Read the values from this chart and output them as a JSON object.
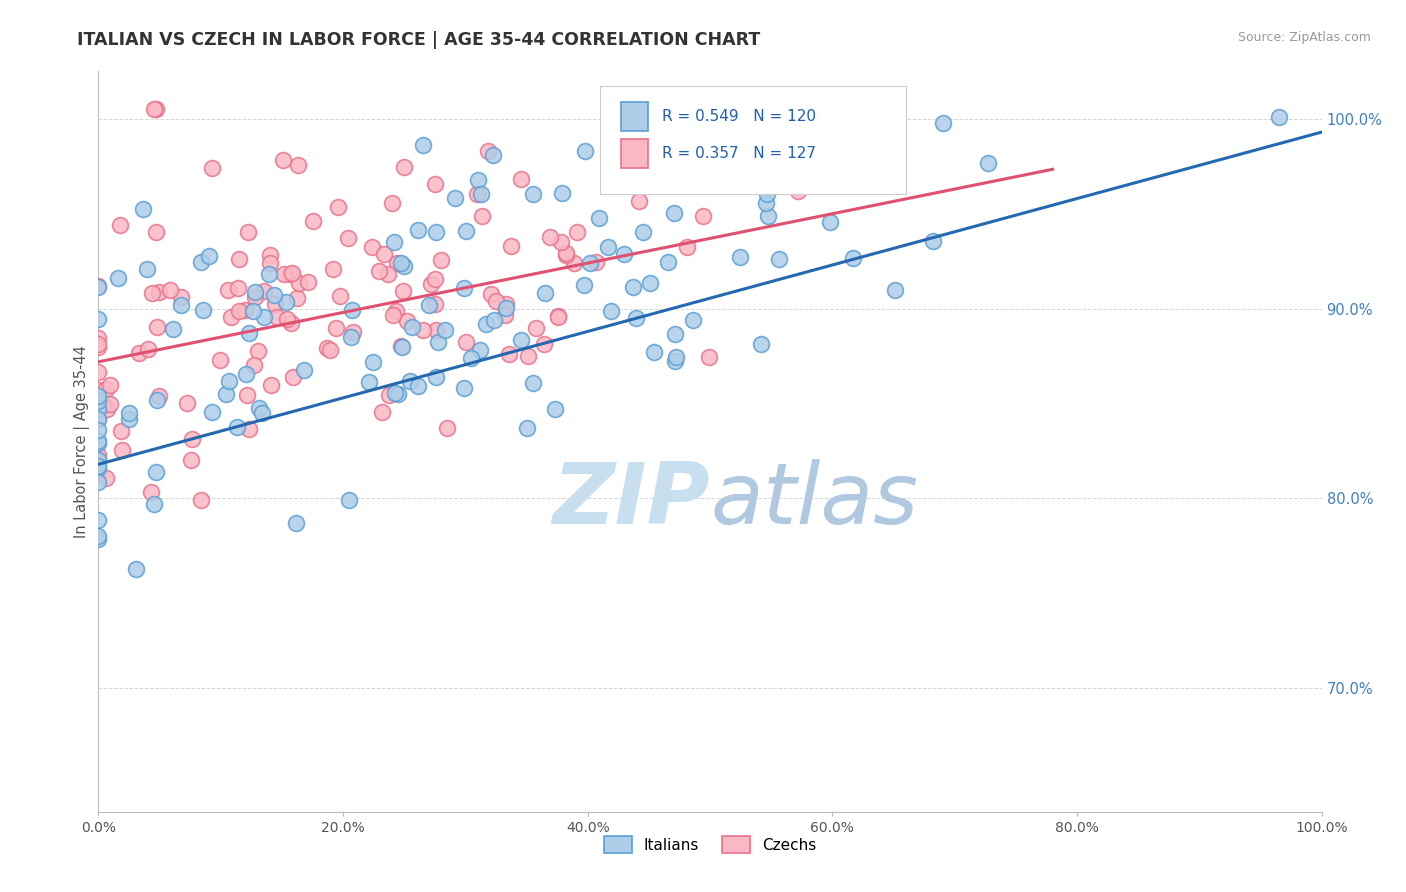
{
  "title": "ITALIAN VS CZECH IN LABOR FORCE | AGE 35-44 CORRELATION CHART",
  "source": "Source: ZipAtlas.com",
  "ylabel": "In Labor Force | Age 35-44",
  "xlim": [
    0.0,
    1.0
  ],
  "ylim": [
    0.635,
    1.025
  ],
  "xticks": [
    0.0,
    0.2,
    0.4,
    0.6,
    0.8,
    1.0
  ],
  "xticklabels": [
    "0.0%",
    "20.0%",
    "40.0%",
    "60.0%",
    "80.0%",
    "100.0%"
  ],
  "yticks": [
    0.7,
    0.8,
    0.9,
    1.0
  ],
  "yticklabels": [
    "70.0%",
    "80.0%",
    "90.0%",
    "100.0%"
  ],
  "italian_R": 0.549,
  "italian_N": 120,
  "czech_R": 0.357,
  "czech_N": 127,
  "italian_face_color": "#aecde8",
  "italian_edge_color": "#5a9fd4",
  "czech_face_color": "#f9b8c4",
  "czech_edge_color": "#e8728a",
  "italian_line_color": "#2468b0",
  "czech_line_color": "#e05070",
  "watermark_color": "#c8dff0",
  "legend_label_italian": "Italians",
  "legend_label_czech": "Czechs",
  "background_color": "#ffffff",
  "grid_color": "#cccccc",
  "title_color": "#333333",
  "axis_label_color": "#555555",
  "ytick_color": "#4080c0",
  "annotation_color": "#2060b0",
  "italian_line_intercept": 0.825,
  "italian_line_slope": 0.165,
  "czech_line_intercept": 0.865,
  "czech_line_slope": 0.118
}
